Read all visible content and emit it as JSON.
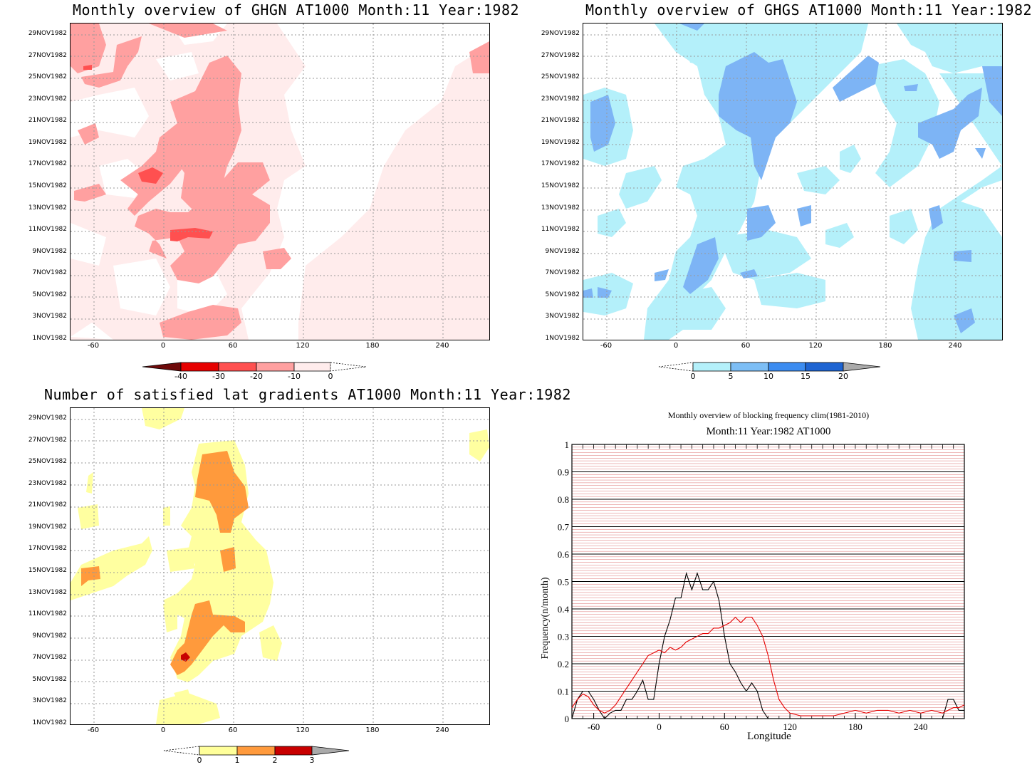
{
  "ghgn": {
    "title": "Monthly overview of GHGN AT1000 Month:11 Year:1982",
    "y_ticks": [
      "29NOV1982",
      "27NOV1982",
      "25NOV1982",
      "23NOV1982",
      "21NOV1982",
      "19NOV1982",
      "17NOV1982",
      "15NOV1982",
      "13NOV1982",
      "11NOV1982",
      "9NOV1982",
      "7NOV1982",
      "5NOV1982",
      "3NOV1982",
      "1NOV1982"
    ],
    "x_ticks": [
      "-60",
      "0",
      "60",
      "120",
      "180",
      "240"
    ],
    "colorbar": {
      "labels": [
        "-40",
        "-30",
        "-20",
        "-10",
        "0"
      ],
      "colors": [
        "#6e0a0a",
        "#e60000",
        "#ff5050",
        "#ffa0a0",
        "#ffecec"
      ]
    },
    "colors": {
      "light": "#ffecec",
      "mid": "#ffa0a0",
      "dark": "#ff5050"
    }
  },
  "ghgs": {
    "title": "Monthly overview of GHGS AT1000 Month:11 Year:1982",
    "y_ticks": [
      "29NOV1982",
      "27NOV1982",
      "25NOV1982",
      "23NOV1982",
      "21NOV1982",
      "19NOV1982",
      "17NOV1982",
      "15NOV1982",
      "13NOV1982",
      "11NOV1982",
      "9NOV1982",
      "7NOV1982",
      "5NOV1982",
      "3NOV1982",
      "1NOV1982"
    ],
    "x_ticks": [
      "-60",
      "0",
      "60",
      "120",
      "180",
      "240"
    ],
    "colorbar": {
      "labels": [
        "0",
        "5",
        "10",
        "15",
        "20"
      ],
      "colors": [
        "#b4f0fa",
        "#7dbef5",
        "#3c8cf0",
        "#1e64d2",
        "#aaaaaa"
      ]
    },
    "colors": {
      "light": "#b4f0fa",
      "mid": "#7db4f5"
    }
  },
  "lat": {
    "title": "Number of satisfied lat gradients AT1000 Month:11 Year:1982",
    "y_ticks": [
      "29NOV1982",
      "27NOV1982",
      "25NOV1982",
      "23NOV1982",
      "21NOV1982",
      "19NOV1982",
      "17NOV1982",
      "15NOV1982",
      "13NOV1982",
      "11NOV1982",
      "9NOV1982",
      "7NOV1982",
      "5NOV1982",
      "3NOV1982",
      "1NOV1982"
    ],
    "x_ticks": [
      "-60",
      "0",
      "60",
      "120",
      "180",
      "240"
    ],
    "colorbar": {
      "labels": [
        "0",
        "1",
        "2",
        "3"
      ],
      "colors": [
        "#ffff9a",
        "#ff9a3c",
        "#c80000",
        "#aaaaaa"
      ]
    },
    "colors": {
      "light": "#ffffa0",
      "mid": "#ff9a3c",
      "dark": "#c80000"
    }
  },
  "chart_data": {
    "type": "line",
    "title": "Monthly overview of blocking frequency clim(1981-2010)",
    "subtitle": "Month:11 Year:1982  AT1000",
    "xlabel": "Longitude",
    "ylabel": "Frequency(n/month)",
    "x_ticks": [
      "-60",
      "0",
      "60",
      "120",
      "180",
      "240"
    ],
    "y_ticks": [
      "0",
      "0.1",
      "0.2",
      "0.3",
      "0.4",
      "0.5",
      "0.6",
      "0.7",
      "0.8",
      "0.9",
      "1"
    ],
    "xlim": [
      -80,
      280
    ],
    "ylim": [
      0,
      1
    ],
    "x": [
      -80,
      -75,
      -70,
      -65,
      -60,
      -55,
      -50,
      -45,
      -40,
      -35,
      -30,
      -25,
      -20,
      -15,
      -10,
      -5,
      0,
      5,
      10,
      15,
      20,
      25,
      30,
      35,
      40,
      45,
      50,
      55,
      60,
      65,
      70,
      75,
      80,
      85,
      90,
      95,
      100,
      105,
      110,
      115,
      120,
      130,
      140,
      150,
      160,
      170,
      180,
      190,
      200,
      210,
      220,
      230,
      240,
      250,
      260,
      265,
      270,
      275,
      280
    ],
    "series": [
      {
        "color": "#000000",
        "values": [
          0.0,
          0.07,
          0.1,
          0.1,
          0.07,
          0.03,
          0.0,
          0.02,
          0.03,
          0.03,
          0.07,
          0.07,
          0.1,
          0.14,
          0.07,
          0.07,
          0.2,
          0.3,
          0.36,
          0.44,
          0.44,
          0.53,
          0.47,
          0.53,
          0.47,
          0.47,
          0.5,
          0.43,
          0.3,
          0.2,
          0.17,
          0.13,
          0.1,
          0.13,
          0.1,
          0.03,
          0.0,
          0.0,
          0.0,
          0.0,
          0.0,
          0.0,
          0.0,
          0.0,
          0.0,
          0.0,
          0.0,
          0.0,
          0.0,
          0.0,
          0.0,
          0.0,
          0.0,
          0.0,
          0.0,
          0.07,
          0.07,
          0.03,
          0.03
        ]
      },
      {
        "color": "#e60000",
        "values": [
          0.04,
          0.07,
          0.09,
          0.08,
          0.05,
          0.03,
          0.02,
          0.03,
          0.05,
          0.08,
          0.11,
          0.14,
          0.17,
          0.2,
          0.23,
          0.24,
          0.25,
          0.24,
          0.26,
          0.25,
          0.26,
          0.28,
          0.29,
          0.3,
          0.31,
          0.31,
          0.33,
          0.33,
          0.34,
          0.35,
          0.37,
          0.35,
          0.37,
          0.37,
          0.34,
          0.3,
          0.23,
          0.14,
          0.07,
          0.04,
          0.02,
          0.01,
          0.01,
          0.01,
          0.01,
          0.02,
          0.03,
          0.02,
          0.03,
          0.03,
          0.02,
          0.03,
          0.02,
          0.03,
          0.02,
          0.03,
          0.04,
          0.04,
          0.05
        ]
      }
    ]
  }
}
